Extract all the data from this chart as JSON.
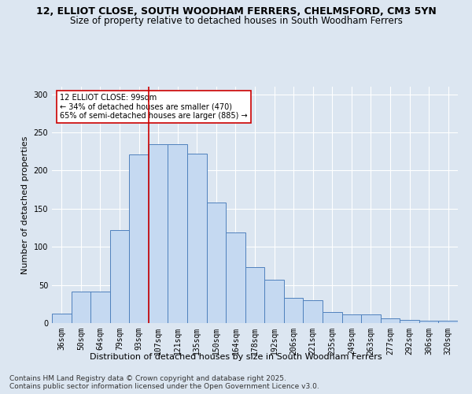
{
  "title_line1": "12, ELLIOT CLOSE, SOUTH WOODHAM FERRERS, CHELMSFORD, CM3 5YN",
  "title_line2": "Size of property relative to detached houses in South Woodham Ferrers",
  "xlabel": "Distribution of detached houses by size in South Woodham Ferrers",
  "ylabel": "Number of detached properties",
  "categories": [
    "36sqm",
    "50sqm",
    "64sqm",
    "79sqm",
    "93sqm",
    "107sqm",
    "121sqm",
    "135sqm",
    "150sqm",
    "164sqm",
    "178sqm",
    "192sqm",
    "206sqm",
    "221sqm",
    "235sqm",
    "249sqm",
    "263sqm",
    "277sqm",
    "292sqm",
    "306sqm",
    "320sqm"
  ],
  "values": [
    12,
    41,
    41,
    122,
    221,
    235,
    235,
    222,
    158,
    119,
    73,
    57,
    33,
    30,
    14,
    11,
    11,
    6,
    4,
    3,
    3
  ],
  "bar_color": "#c5d9f1",
  "bar_edge_color": "#4f81bd",
  "annotation_line1": "12 ELLIOT CLOSE: 99sqm",
  "annotation_line2": "← 34% of detached houses are smaller (470)",
  "annotation_line3": "65% of semi-detached houses are larger (885) →",
  "annotation_box_facecolor": "#ffffff",
  "annotation_box_edgecolor": "#cc0000",
  "vline_color": "#cc0000",
  "vline_x_index": 4,
  "ylim": [
    0,
    310
  ],
  "yticks": [
    0,
    50,
    100,
    150,
    200,
    250,
    300
  ],
  "bg_color": "#dce6f1",
  "grid_color": "#ffffff",
  "title_fontsize": 9,
  "subtitle_fontsize": 8.5,
  "axis_label_fontsize": 8,
  "tick_fontsize": 7,
  "annotation_fontsize": 7,
  "footer_fontsize": 6.5,
  "footer_line1": "Contains HM Land Registry data © Crown copyright and database right 2025.",
  "footer_line2": "Contains public sector information licensed under the Open Government Licence v3.0."
}
